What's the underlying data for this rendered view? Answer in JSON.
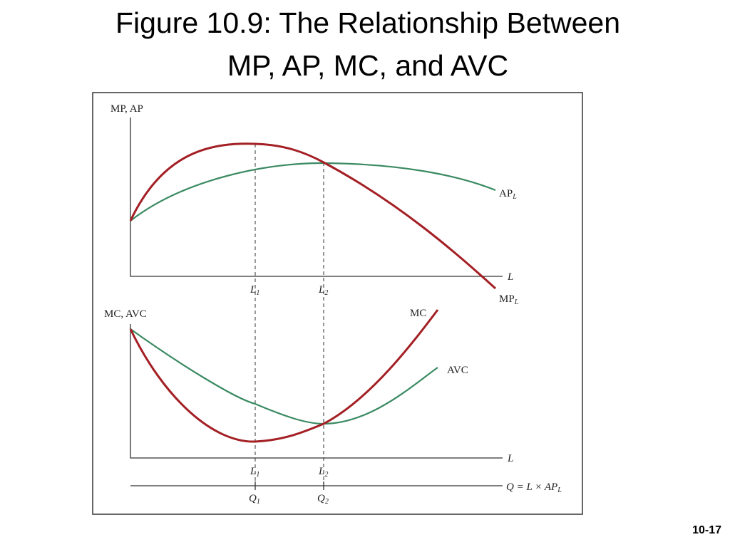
{
  "title": [
    "Figure 10.9: The Relationship Between",
    "MP, AP, MC, and AVC"
  ],
  "top_panel": {
    "y_axis_label": "MP, AP",
    "x_axis_label": "L",
    "curves": [
      {
        "label": "AP",
        "subscript": "L"
      },
      {
        "label": "MP",
        "subscript": "L"
      }
    ],
    "markers": [
      {
        "label": "L",
        "subscript": "1"
      },
      {
        "label": "L",
        "subscript": "2"
      }
    ]
  },
  "bottom_panel": {
    "y_axis_label": "MC, AVC",
    "x_axis_label": "L",
    "curves": [
      {
        "label": "MC"
      },
      {
        "label": "AVC"
      }
    ],
    "markers": [
      {
        "label": "L",
        "subscript": "1"
      },
      {
        "label": "L",
        "subscript": "2"
      }
    ]
  },
  "q_axis": {
    "label": "Q = L × AP",
    "subscript": "L",
    "markers": [
      {
        "label": "Q",
        "subscript": "1"
      },
      {
        "label": "Q",
        "subscript": "2"
      }
    ]
  },
  "slide_number": "10-17"
}
